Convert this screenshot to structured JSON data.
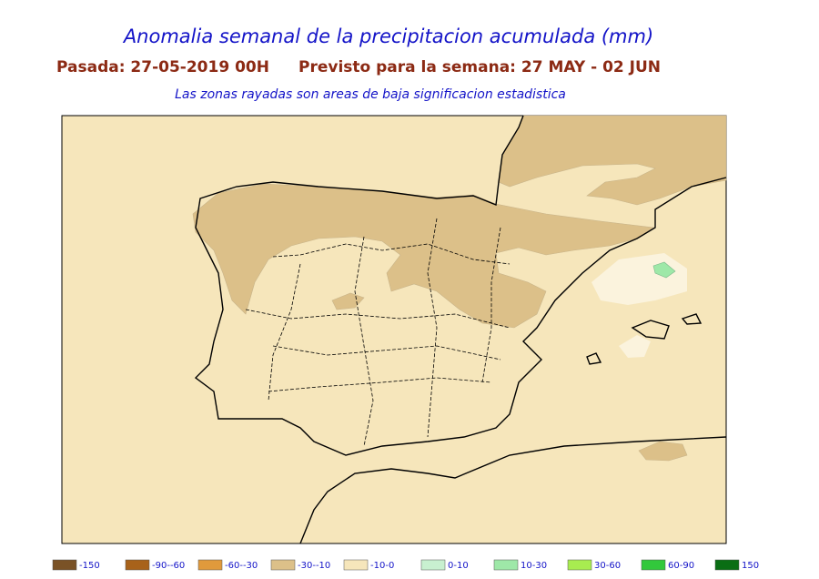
{
  "header": {
    "title": "Anomalia semanal de la precipitacion acumulada (mm)",
    "run": "Pasada: 27-05-2019 00H",
    "period": "Previsto para la semana:  27 MAY - 02 JUN",
    "subtitle": "Las zonas rayadas son areas de baja significacion estadistica"
  },
  "legend": [
    {
      "label": "-150",
      "color": "#7a5226"
    },
    {
      "label": "-90--60",
      "color": "#a8621a"
    },
    {
      "label": "-60--30",
      "color": "#e09a3c"
    },
    {
      "label": "-30--10",
      "color": "#dcc089"
    },
    {
      "label": "-10-0",
      "color": "#f6e6bb"
    },
    {
      "label": "0-10",
      "color": "#c8f0d0"
    },
    {
      "label": "10-30",
      "color": "#9ee8a8"
    },
    {
      "label": "30-60",
      "color": "#a8ec50"
    },
    {
      "label": "60-90",
      "color": "#32c83c"
    },
    {
      "label": "150",
      "color": "#0a6e14"
    }
  ]
}
